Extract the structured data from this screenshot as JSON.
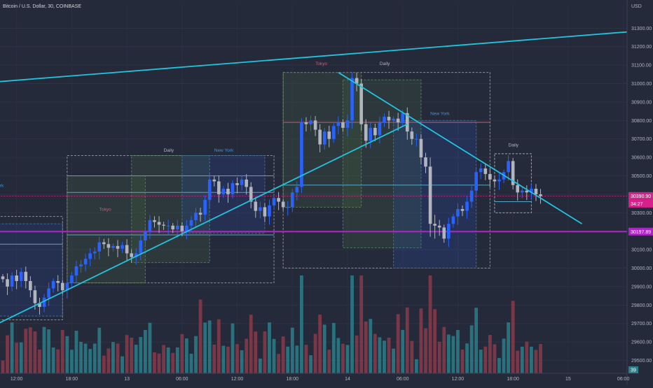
{
  "header": {
    "symbol_title": "Bitcoin / U.S. Dollar, 30, COINBASE",
    "currency": "USD"
  },
  "colors": {
    "background": "#252a3b",
    "up": "#2962ff",
    "down": "#b2b5be",
    "volume_up": "#2a7f8a",
    "volume_down": "#8a3a4a",
    "trendline": "#22c4dd",
    "price_tag": "#d6218d",
    "level_line": "#b023c8",
    "session_line": "#5fa3c4"
  },
  "chart_data": {
    "type": "candlestick",
    "symbol": "BTCUSD",
    "timeframe": "30",
    "exchange": "COINBASE",
    "ylim": [
      29430,
      31430
    ],
    "yticks": [
      29500,
      29600,
      29700,
      29800,
      29900,
      30000,
      30100,
      30200,
      30300,
      30400,
      30500,
      30600,
      30700,
      30800,
      30900,
      31000,
      31100,
      31200,
      31300
    ],
    "ytick_labels": [
      "29500.00",
      "29600.00",
      "29700.00",
      "29800.00",
      "29900.00",
      "30000.00",
      "30100.00",
      "30200.00",
      "30300.00",
      "30400.00",
      "30500.00",
      "30600.00",
      "30700.00",
      "30800.00",
      "30900.00",
      "31000.00",
      "31100.00",
      "31200.00",
      "31300.00"
    ],
    "xticks": [
      {
        "bar": 3,
        "label": "12:00"
      },
      {
        "bar": 15,
        "label": "18:00"
      },
      {
        "bar": 27,
        "label": "13"
      },
      {
        "bar": 39,
        "label": "06:00"
      },
      {
        "bar": 51,
        "label": "12:00"
      },
      {
        "bar": 63,
        "label": "18:00"
      },
      {
        "bar": 75,
        "label": "14"
      },
      {
        "bar": 87,
        "label": "06:00"
      },
      {
        "bar": 99,
        "label": "12:00"
      },
      {
        "bar": 111,
        "label": "18:00"
      },
      {
        "bar": 123,
        "label": "15"
      },
      {
        "bar": 135,
        "label": "06:00"
      }
    ],
    "candles_close": [
      29940,
      29900,
      29960,
      29930,
      29980,
      29930,
      29880,
      29810,
      29790,
      29840,
      29890,
      29930,
      29920,
      29880,
      29920,
      29960,
      30010,
      30020,
      30050,
      30080,
      30090,
      30140,
      30130,
      30110,
      30120,
      30105,
      30125,
      30080,
      30060,
      30080,
      30150,
      30200,
      30260,
      30250,
      30235,
      30230,
      30230,
      30210,
      30230,
      30200,
      30230,
      30260,
      30300,
      30290,
      30370,
      30480,
      30470,
      30400,
      30430,
      30400,
      30460,
      30450,
      30480,
      30440,
      30360,
      30310,
      30330,
      30280,
      30340,
      30380,
      30360,
      30330,
      30330,
      30410,
      30440,
      30790,
      30780,
      30800,
      30750,
      30670,
      30740,
      30700,
      30770,
      30790,
      30760,
      30800,
      31030,
      31000,
      30780,
      30690,
      30760,
      30720,
      30790,
      30820,
      30800,
      30810,
      30790,
      30840,
      30740,
      30700,
      30700,
      30600,
      30550,
      30240,
      30230,
      30220,
      30160,
      30240,
      30280,
      30320,
      30310,
      30360,
      30420,
      30520,
      30540,
      30510,
      30480,
      30470,
      30480,
      30520,
      30580,
      30450,
      30410,
      30420,
      30410,
      30430,
      30400,
      30390
    ]
  },
  "annotations": {
    "sessions": [
      "Daily",
      "New York",
      "Tokyo"
    ],
    "last_price": "30390.90",
    "countdown": "34:27",
    "level_price": "30197.89",
    "volume_value": "39"
  }
}
